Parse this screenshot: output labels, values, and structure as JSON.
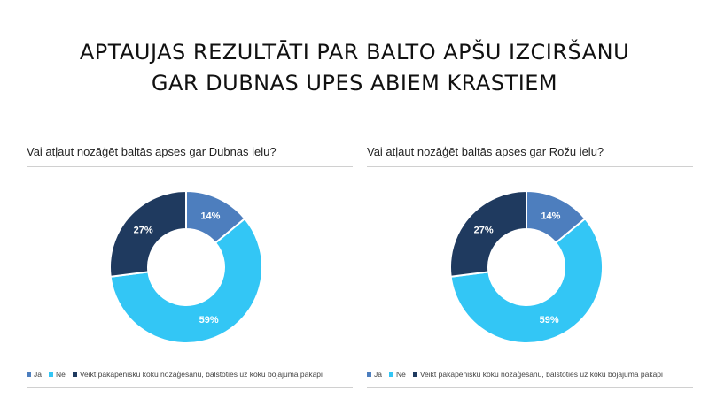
{
  "page": {
    "title_line1": "APTAUJAS REZULTĀTI PAR BALTO APŠU IZCIRŠANU",
    "title_line2": "GAR DUBNAS UPES ABIEM KRASTIEM"
  },
  "colors": {
    "ja": "#4d7ebe",
    "ne": "#33c6f5",
    "veikt": "#1f3a5f"
  },
  "chart_data": [
    {
      "type": "pie",
      "title": "Vai atļaut nozāģēt baltās apses gar Dubnas ielu?",
      "categories": [
        "Jā",
        "Nē",
        "Veikt pakāpenisku koku nozāģēšanu, balstoties uz koku bojājuma pakāpi"
      ],
      "values": [
        14,
        59,
        27
      ],
      "labels": [
        "14%",
        "59%",
        "27%"
      ],
      "donut": true,
      "legend": "bottom-left"
    },
    {
      "type": "pie",
      "title": "Vai atļaut nozāģēt baltās apses gar Rožu ielu?",
      "categories": [
        "Jā",
        "Nē",
        "Veikt pakāpenisku koku nozāģēšanu, balstoties uz koku bojājuma pakāpi"
      ],
      "values": [
        14,
        59,
        27
      ],
      "labels": [
        "14%",
        "59%",
        "27%"
      ],
      "donut": true,
      "legend": "bottom-left"
    }
  ]
}
